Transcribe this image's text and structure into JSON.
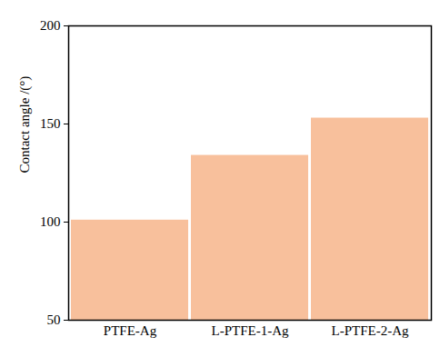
{
  "chart_data": {
    "type": "bar",
    "ylabel": "Contact angle /(°)",
    "categories": [
      "PTFE-Ag",
      "L-PTFE-1-Ag",
      "L-PTFE-2-Ag"
    ],
    "values": [
      101,
      134,
      153
    ],
    "color": "#f8c09c",
    "ylim": [
      50,
      200
    ],
    "yticks": [
      50,
      100,
      150,
      200
    ],
    "grid": false
  }
}
